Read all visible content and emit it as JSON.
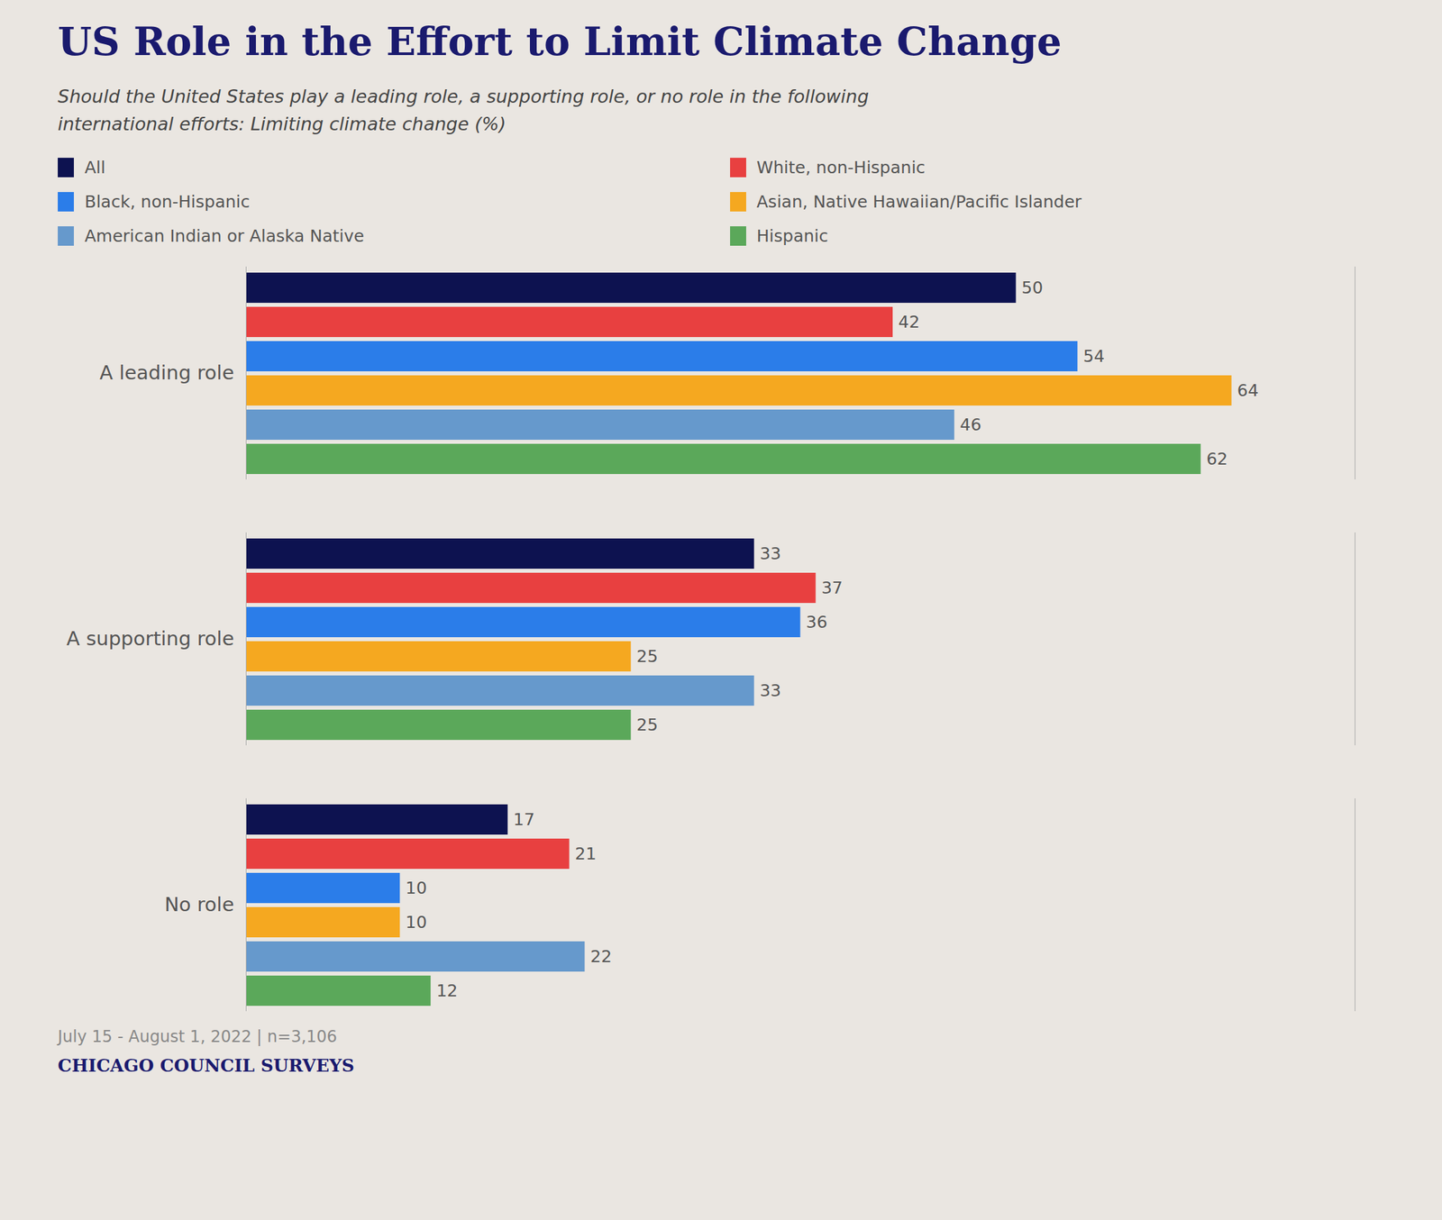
{
  "chart_data": {
    "type": "bar",
    "orientation": "horizontal",
    "title": "US Role in the Effort to Limit Climate Change",
    "subtitle": "Should the United States play a leading role, a supporting role, or no role in the following\ninternational efforts: Limiting climate change (%)",
    "annotations": [
      "July 15 - August 1, 2022 | n=3,106",
      "CHICAGO COUNCIL SURVEYS"
    ],
    "categories": [
      "A leading role",
      "A supporting role",
      "No role"
    ],
    "series": [
      {
        "name": "All",
        "color": "#0d1250",
        "values": [
          50,
          33,
          17
        ]
      },
      {
        "name": "White, non-Hispanic",
        "color": "#e84040",
        "values": [
          42,
          37,
          21
        ]
      },
      {
        "name": "Black, non-Hispanic",
        "color": "#2b7de9",
        "values": [
          54,
          36,
          10
        ]
      },
      {
        "name": "Asian, Native Hawaiian/Pacific Islander",
        "color": "#f5a820",
        "values": [
          64,
          25,
          10
        ]
      },
      {
        "name": "American Indian or Alaska Native",
        "color": "#6699cc",
        "values": [
          46,
          33,
          22
        ]
      },
      {
        "name": "Hispanic",
        "color": "#5ba85a",
        "values": [
          62,
          25,
          12
        ]
      }
    ],
    "xlim": [
      0,
      72
    ],
    "xticks": [],
    "tick_labels": "y",
    "data_labels": true,
    "grid": false,
    "legend": "top"
  }
}
